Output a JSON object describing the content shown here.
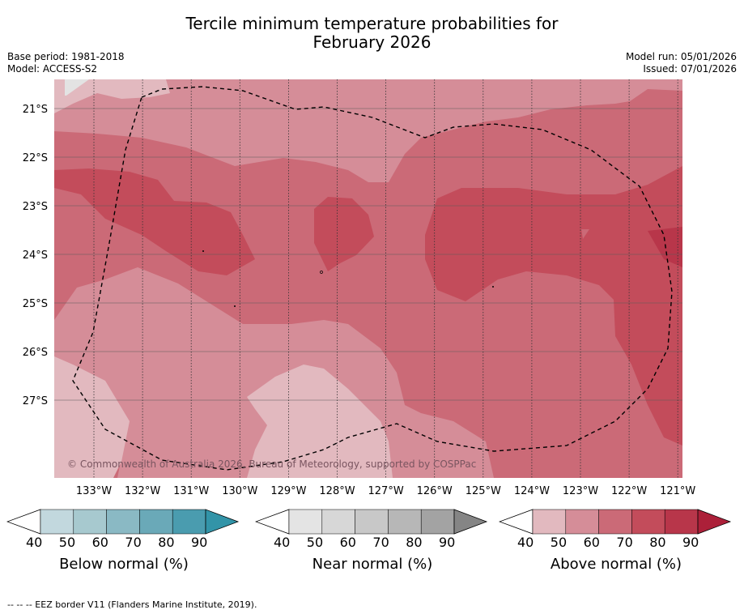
{
  "title": {
    "line1": "Tercile minimum temperature probabilities for",
    "line2": "February 2026"
  },
  "meta": {
    "base_period": "Base period: 1981-2018",
    "model": "Model: ACCESS-S2",
    "model_run": "Model run: 05/01/2026",
    "issued": "Issued: 07/01/2026"
  },
  "map": {
    "lat_ticks": [
      "21°S",
      "22°S",
      "23°S",
      "24°S",
      "25°S",
      "26°S",
      "27°S"
    ],
    "lon_ticks": [
      "133°W",
      "132°W",
      "131°W",
      "130°W",
      "129°W",
      "128°W",
      "127°W",
      "126°W",
      "125°W",
      "124°W",
      "123°W",
      "122°W",
      "121°W"
    ],
    "copyright": "© Commonwealth of Australia 2026, Bureau of Meteorology, supported by COSPPac",
    "colors": {
      "above_40": "#e2b9bf",
      "above_50": "#d58d98",
      "above_60": "#cb6a77",
      "above_70": "#c34c5b",
      "above_80": "#b8364a",
      "near_40": "#e3e3e3"
    }
  },
  "legends": [
    {
      "label": "Below normal (%)",
      "ticks": [
        "40",
        "50",
        "60",
        "70",
        "80",
        "90"
      ],
      "colors": [
        "#c2d8de",
        "#a7c9cf",
        "#8ab9c4",
        "#6aa9b8",
        "#4a9caf",
        "#3294a8"
      ]
    },
    {
      "label": "Near normal (%)",
      "ticks": [
        "40",
        "50",
        "60",
        "70",
        "80",
        "90"
      ],
      "colors": [
        "#e4e4e4",
        "#d7d7d7",
        "#c8c8c8",
        "#b7b7b7",
        "#a3a3a3",
        "#858585"
      ]
    },
    {
      "label": "Above normal (%)",
      "ticks": [
        "40",
        "50",
        "60",
        "70",
        "80",
        "90"
      ],
      "colors": [
        "#e2b9bf",
        "#d58d98",
        "#cb6a77",
        "#c34c5b",
        "#b8364a",
        "#ac2039"
      ]
    }
  ],
  "footnote": "-- -- -- EEZ border V11 (Flanders Marine Institute, 2019)."
}
